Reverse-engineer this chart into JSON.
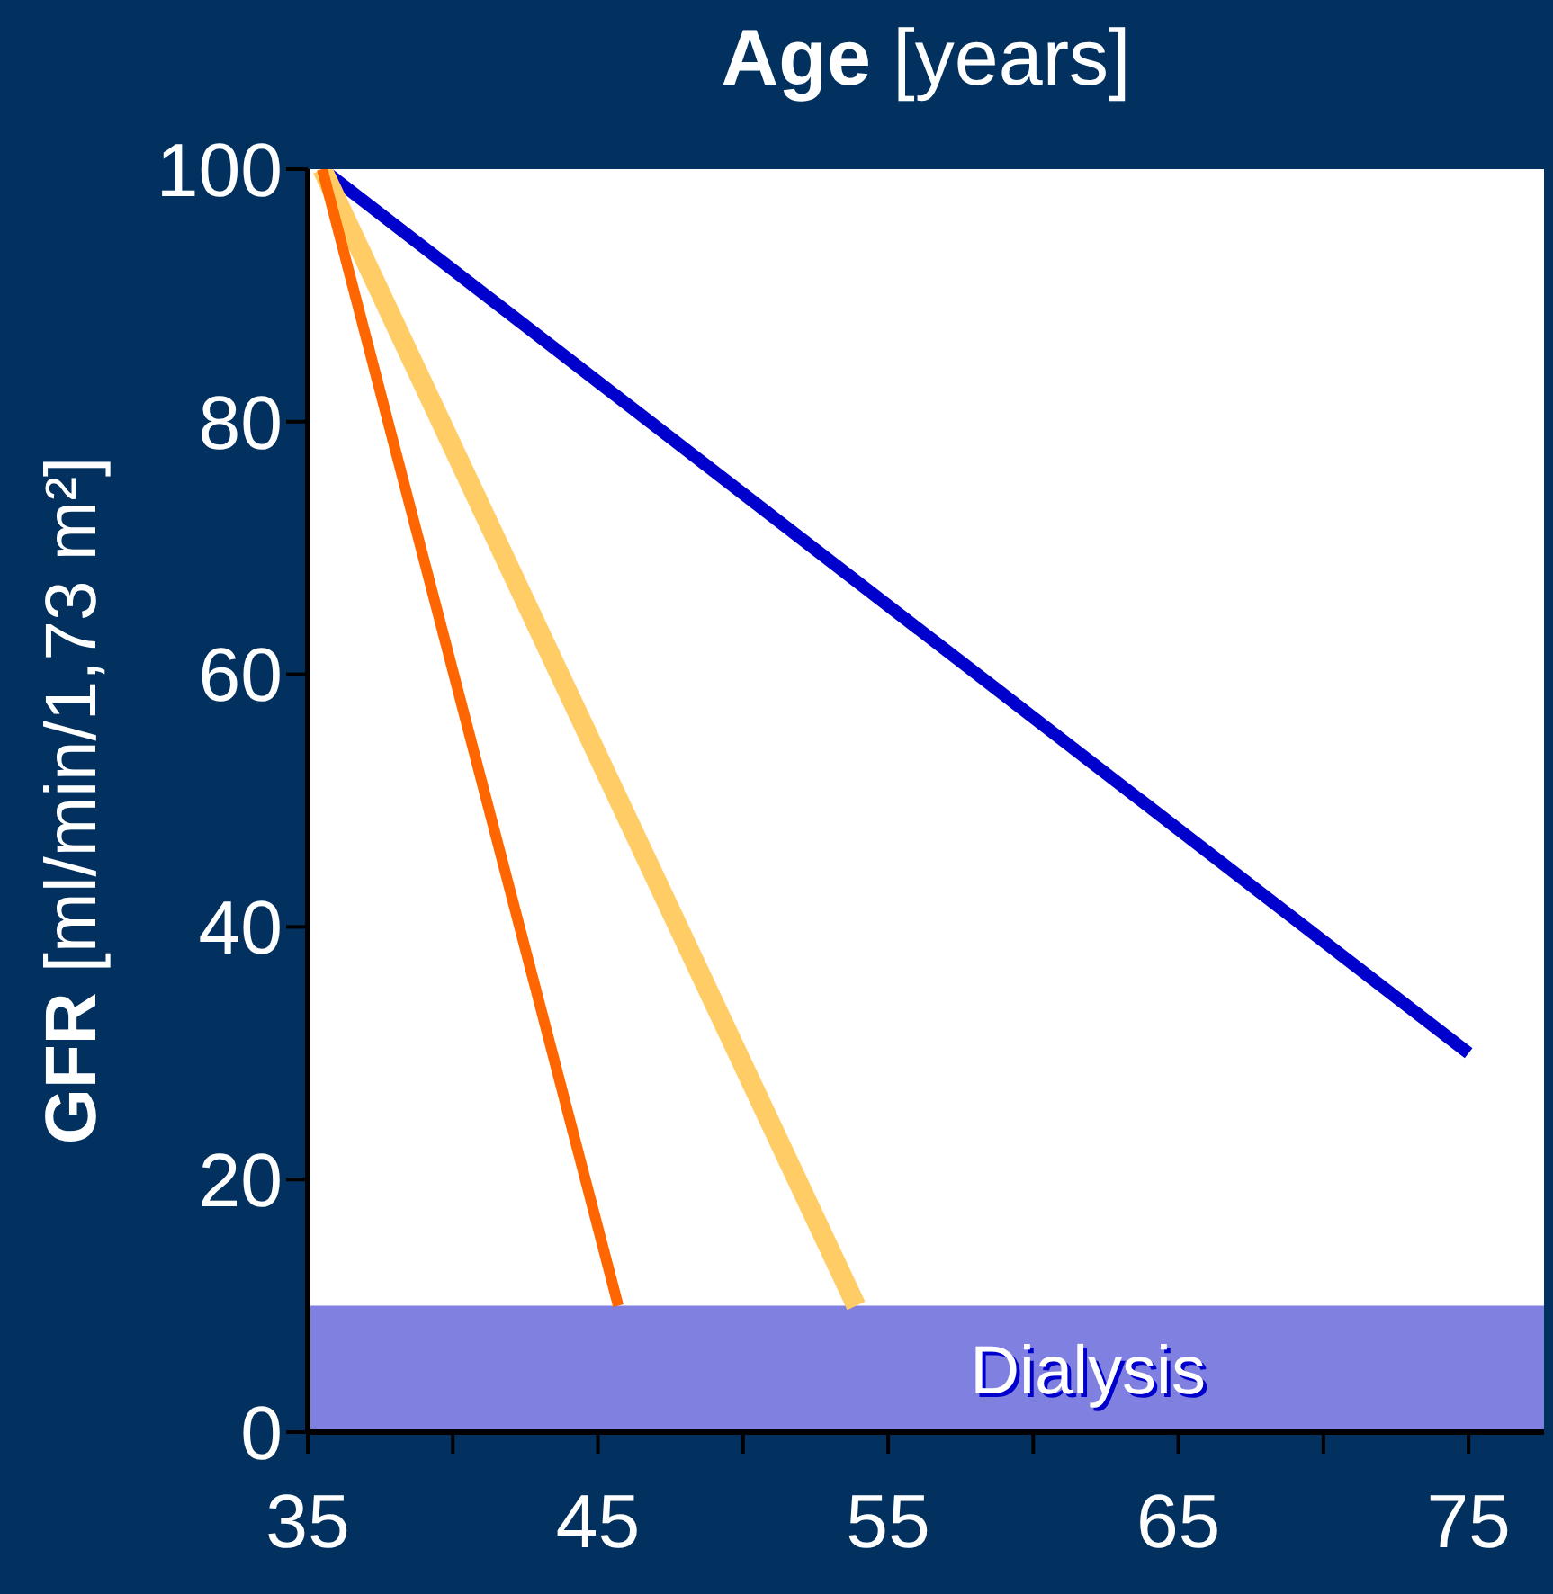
{
  "chart_data": {
    "type": "line",
    "xlabel": "Age [years]",
    "ylabel": "GFR [ml/min/1,73 m²]",
    "xlim": [
      35,
      77.6
    ],
    "xticks": [
      35,
      {
        "value": 40,
        "label": null
      },
      45,
      {
        "value": 50,
        "label": null
      },
      55,
      {
        "value": 60,
        "label": null
      },
      65,
      {
        "value": 70,
        "label": null
      },
      75
    ],
    "ylim": [
      0,
      100
    ],
    "yticks": [
      0,
      20,
      40,
      60,
      80,
      100
    ],
    "grid": false,
    "marker": "none",
    "line_style": "solid",
    "bands": [
      {
        "axis": "y",
        "from": 0,
        "to": 10,
        "label": "Dialysis",
        "color": "#8080e0"
      }
    ],
    "series": [
      {
        "color": "#0000cc",
        "x": [
          35.5,
          75
        ],
        "values": [
          100,
          30
        ]
      },
      {
        "color": "#ffcc66",
        "x": [
          35.5,
          53.9
        ],
        "values": [
          100,
          10
        ]
      },
      {
        "color": "#ff6600",
        "x": [
          35.5,
          45.7
        ],
        "values": [
          100,
          10
        ]
      }
    ]
  }
}
